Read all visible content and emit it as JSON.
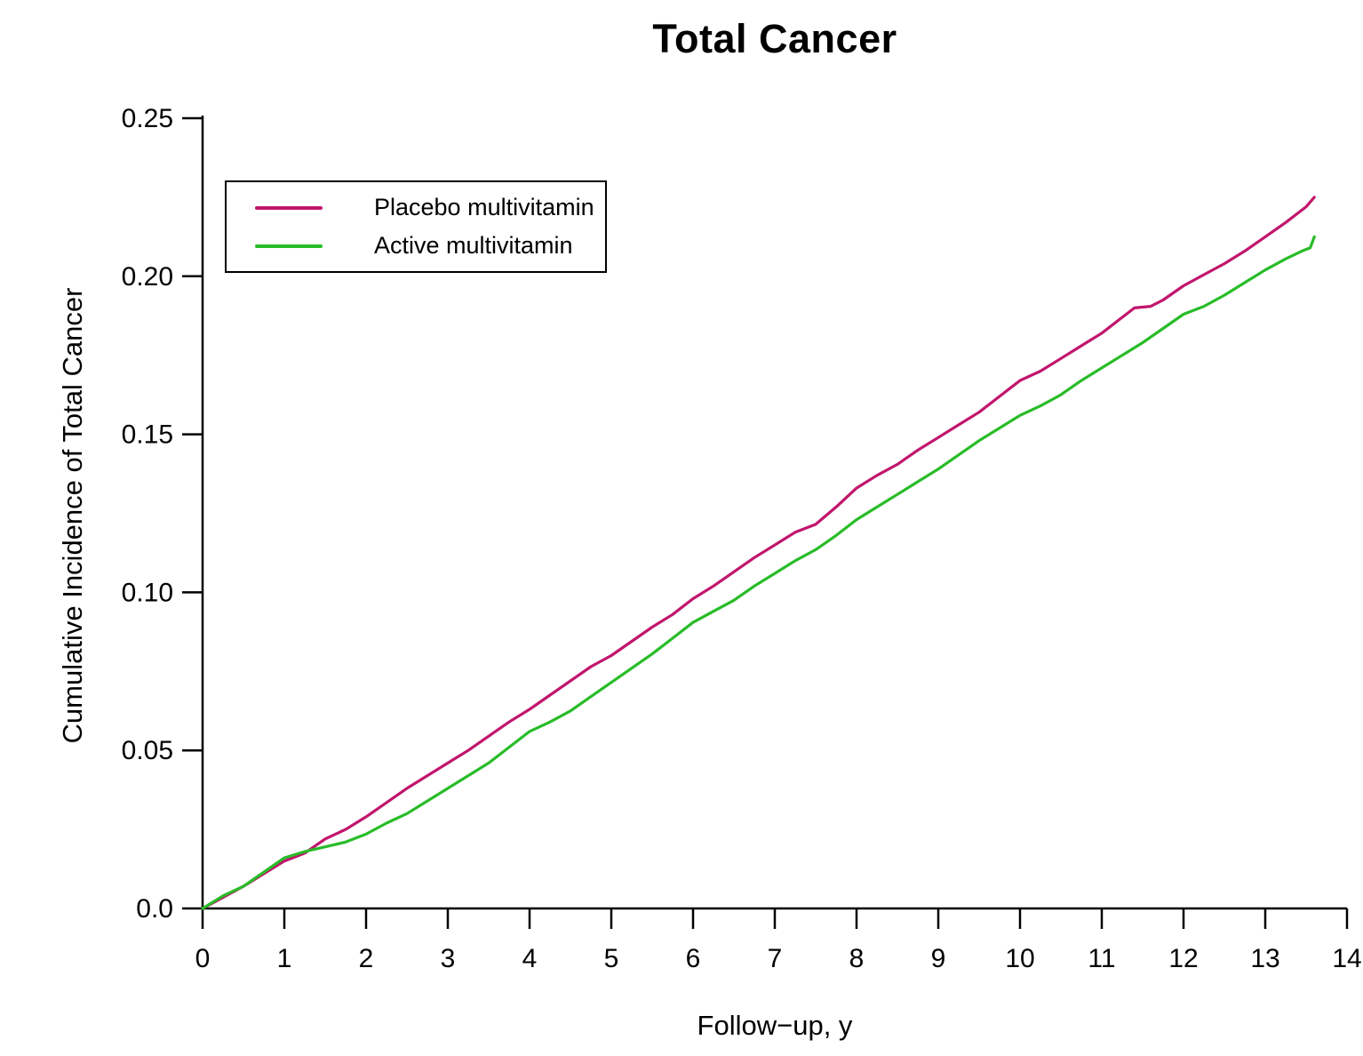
{
  "chart_data": {
    "type": "line",
    "title": "Total Cancer",
    "xlabel": "Follow−up, y",
    "ylabel": "Cumulative Incidence of Total Cancer",
    "xlim": [
      0,
      14
    ],
    "ylim": [
      0,
      0.25
    ],
    "x_ticks": [
      0,
      1,
      2,
      3,
      4,
      5,
      6,
      7,
      8,
      9,
      10,
      11,
      12,
      13,
      14
    ],
    "y_ticks": [
      0,
      0.05,
      0.1,
      0.15,
      0.2,
      0.25
    ],
    "y_tick_labels": [
      "0.0",
      "0.05",
      "0.10",
      "0.15",
      "0.20",
      "0.25"
    ],
    "grid": false,
    "legend_position": "upper-left-inside",
    "axis_color": "#000000",
    "series": [
      {
        "name": "Placebo multivitamin",
        "color": "#C1156D",
        "points": [
          [
            0,
            0
          ],
          [
            0.25,
            0.0035
          ],
          [
            0.5,
            0.007
          ],
          [
            0.75,
            0.011
          ],
          [
            1,
            0.015
          ],
          [
            1.25,
            0.0175
          ],
          [
            1.5,
            0.022
          ],
          [
            1.75,
            0.025
          ],
          [
            2,
            0.029
          ],
          [
            2.25,
            0.0335
          ],
          [
            2.5,
            0.038
          ],
          [
            2.75,
            0.042
          ],
          [
            3,
            0.046
          ],
          [
            3.25,
            0.05
          ],
          [
            3.5,
            0.0545
          ],
          [
            3.75,
            0.059
          ],
          [
            4,
            0.063
          ],
          [
            4.25,
            0.0675
          ],
          [
            4.5,
            0.072
          ],
          [
            4.75,
            0.0765
          ],
          [
            5,
            0.08
          ],
          [
            5.25,
            0.0845
          ],
          [
            5.5,
            0.089
          ],
          [
            5.75,
            0.093
          ],
          [
            6,
            0.098
          ],
          [
            6.25,
            0.102
          ],
          [
            6.5,
            0.1065
          ],
          [
            6.75,
            0.111
          ],
          [
            7,
            0.115
          ],
          [
            7.25,
            0.119
          ],
          [
            7.5,
            0.1215
          ],
          [
            7.75,
            0.127
          ],
          [
            8,
            0.133
          ],
          [
            8.25,
            0.137
          ],
          [
            8.5,
            0.1405
          ],
          [
            8.75,
            0.145
          ],
          [
            9,
            0.149
          ],
          [
            9.25,
            0.153
          ],
          [
            9.5,
            0.157
          ],
          [
            9.75,
            0.162
          ],
          [
            10,
            0.167
          ],
          [
            10.25,
            0.17
          ],
          [
            10.5,
            0.174
          ],
          [
            10.75,
            0.178
          ],
          [
            11,
            0.182
          ],
          [
            11.25,
            0.187
          ],
          [
            11.4,
            0.19
          ],
          [
            11.6,
            0.1905
          ],
          [
            11.75,
            0.1925
          ],
          [
            12,
            0.197
          ],
          [
            12.25,
            0.2005
          ],
          [
            12.5,
            0.204
          ],
          [
            12.75,
            0.208
          ],
          [
            13,
            0.2125
          ],
          [
            13.25,
            0.217
          ],
          [
            13.5,
            0.222
          ],
          [
            13.6,
            0.225
          ]
        ]
      },
      {
        "name": "Active multivitamin",
        "color": "#28BC28",
        "points": [
          [
            0,
            0
          ],
          [
            0.25,
            0.004
          ],
          [
            0.5,
            0.007
          ],
          [
            0.75,
            0.0115
          ],
          [
            1,
            0.016
          ],
          [
            1.25,
            0.018
          ],
          [
            1.5,
            0.0195
          ],
          [
            1.75,
            0.021
          ],
          [
            2,
            0.0235
          ],
          [
            2.25,
            0.027
          ],
          [
            2.5,
            0.03
          ],
          [
            2.75,
            0.034
          ],
          [
            3,
            0.038
          ],
          [
            3.25,
            0.042
          ],
          [
            3.5,
            0.046
          ],
          [
            3.75,
            0.051
          ],
          [
            4,
            0.056
          ],
          [
            4.25,
            0.059
          ],
          [
            4.5,
            0.0625
          ],
          [
            4.75,
            0.067
          ],
          [
            5,
            0.0715
          ],
          [
            5.25,
            0.076
          ],
          [
            5.5,
            0.0805
          ],
          [
            5.75,
            0.0855
          ],
          [
            6,
            0.0905
          ],
          [
            6.25,
            0.094
          ],
          [
            6.5,
            0.0975
          ],
          [
            6.75,
            0.102
          ],
          [
            7,
            0.106
          ],
          [
            7.25,
            0.11
          ],
          [
            7.5,
            0.1135
          ],
          [
            7.75,
            0.118
          ],
          [
            8,
            0.123
          ],
          [
            8.25,
            0.127
          ],
          [
            8.5,
            0.131
          ],
          [
            8.75,
            0.135
          ],
          [
            9,
            0.139
          ],
          [
            9.25,
            0.1435
          ],
          [
            9.5,
            0.148
          ],
          [
            9.75,
            0.152
          ],
          [
            10,
            0.156
          ],
          [
            10.25,
            0.159
          ],
          [
            10.5,
            0.1625
          ],
          [
            10.75,
            0.167
          ],
          [
            11,
            0.171
          ],
          [
            11.25,
            0.175
          ],
          [
            11.5,
            0.179
          ],
          [
            11.75,
            0.1835
          ],
          [
            12,
            0.188
          ],
          [
            12.25,
            0.1905
          ],
          [
            12.5,
            0.194
          ],
          [
            12.75,
            0.198
          ],
          [
            13,
            0.202
          ],
          [
            13.25,
            0.2055
          ],
          [
            13.45,
            0.208
          ],
          [
            13.55,
            0.209
          ],
          [
            13.6,
            0.2125
          ]
        ]
      }
    ]
  }
}
